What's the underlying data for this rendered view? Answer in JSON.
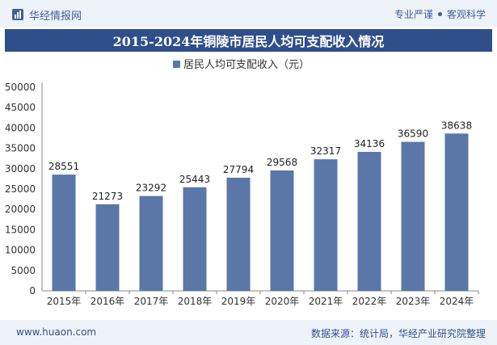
{
  "header": {
    "brand": "华经情报网",
    "tag_left": "专业严谨",
    "tag_right": "客观科学"
  },
  "title": "2015-2024年铜陵市居民人均可支配收入情况",
  "chart_data": {
    "type": "bar",
    "title": "2015-2024年铜陵市居民人均可支配收入情况",
    "categories": [
      "2015年",
      "2016年",
      "2017年",
      "2018年",
      "2019年",
      "2020年",
      "2021年",
      "2022年",
      "2023年",
      "2024年"
    ],
    "series": [
      {
        "name": "居民人均可支配收入（元）",
        "values": [
          28551,
          21273,
          23292,
          25443,
          27794,
          29568,
          32317,
          34136,
          36590,
          38638
        ],
        "color": "#5b77a8"
      }
    ],
    "yticks": [
      0,
      5000,
      10000,
      15000,
      20000,
      25000,
      30000,
      35000,
      40000,
      45000,
      50000
    ],
    "ylim": [
      0,
      50000
    ],
    "xlabel": "",
    "ylabel": "",
    "legend_position": "top-center",
    "grid": false
  },
  "footer": {
    "site": "www.huaon.com",
    "source": "数据来源：统计局，华经产业研究院整理"
  }
}
